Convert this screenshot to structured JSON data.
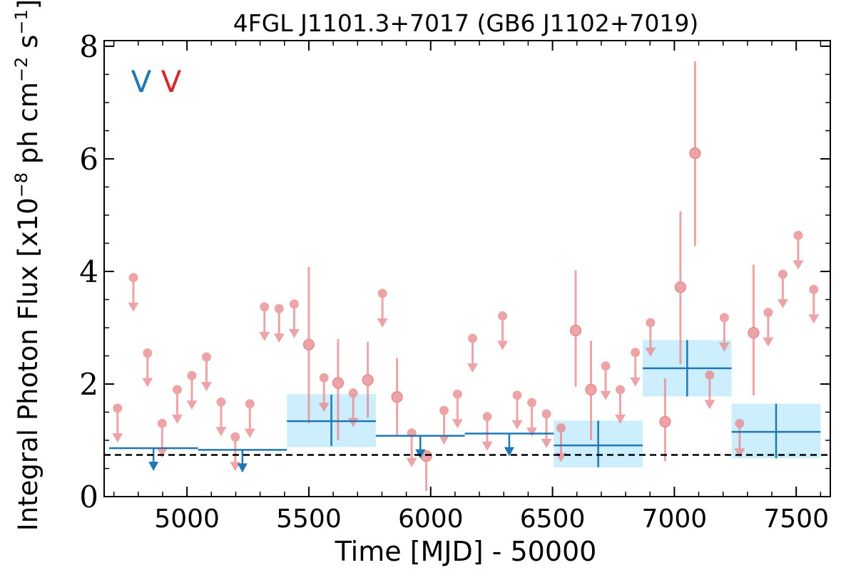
{
  "chart_data": {
    "type": "scatter",
    "title": "4FGL J1101.3+7017 (GB6 J1102+7019)",
    "xlabel": "Time [MJD] - 50000",
    "ylabel_parts": [
      "Integral Photon Flux [x10",
      "−8",
      " ph cm",
      "−2",
      " s",
      "−1",
      "]"
    ],
    "xlim": [
      4660,
      7640
    ],
    "ylim": [
      0,
      8.1
    ],
    "x_ticks": [
      5000,
      5500,
      6000,
      6500,
      7000,
      7500
    ],
    "y_ticks": [
      0,
      2,
      4,
      6,
      8
    ],
    "grid": false,
    "legend_markers": [
      {
        "text": "V",
        "color": "#1f77b4"
      },
      {
        "text": "V",
        "color": "#d62728"
      }
    ],
    "baseline": 0.74,
    "colors": {
      "long_bins": "#1f77b4",
      "long_bins_fill": "#cdeefc",
      "short_bins": "#e8868a",
      "baseline": "#000000"
    },
    "long_bins": [
      {
        "x_start": 4680,
        "x_end": 5045,
        "ul": 0.86
      },
      {
        "x_start": 5045,
        "x_end": 5410,
        "ul": 0.83
      },
      {
        "x_start": 5410,
        "x_end": 5775,
        "y": 1.34,
        "yerr_low": 0.9,
        "yerr_high": 1.81,
        "band_low": 0.88,
        "band_high": 1.82
      },
      {
        "x_start": 5775,
        "x_end": 6140,
        "ul": 1.08
      },
      {
        "x_start": 6140,
        "x_end": 6505,
        "ul": 1.12
      },
      {
        "x_start": 6505,
        "x_end": 6870,
        "y": 0.91,
        "yerr_low": 0.52,
        "yerr_high": 1.35,
        "band_low": 0.52,
        "band_high": 1.35
      },
      {
        "x_start": 6870,
        "x_end": 7235,
        "y": 2.28,
        "yerr_low": 1.78,
        "yerr_high": 2.78,
        "band_low": 1.78,
        "band_high": 2.78
      },
      {
        "x_start": 7235,
        "x_end": 7600,
        "y": 1.15,
        "yerr_low": 0.68,
        "yerr_high": 1.65,
        "band_low": 0.68,
        "band_high": 1.65
      }
    ],
    "short_bins": {
      "upper_limits": [
        {
          "x": 4715,
          "ul": 1.57
        },
        {
          "x": 4780,
          "ul": 3.89
        },
        {
          "x": 4838,
          "ul": 2.55
        },
        {
          "x": 4898,
          "ul": 1.3
        },
        {
          "x": 4960,
          "ul": 1.9
        },
        {
          "x": 5020,
          "ul": 2.15
        },
        {
          "x": 5080,
          "ul": 2.48
        },
        {
          "x": 5140,
          "ul": 1.68
        },
        {
          "x": 5198,
          "ul": 1.06
        },
        {
          "x": 5258,
          "ul": 1.65
        },
        {
          "x": 5318,
          "ul": 3.37
        },
        {
          "x": 5378,
          "ul": 3.34
        },
        {
          "x": 5440,
          "ul": 3.42
        },
        {
          "x": 5562,
          "ul": 2.11
        },
        {
          "x": 5682,
          "ul": 1.84
        },
        {
          "x": 5802,
          "ul": 3.61
        },
        {
          "x": 5922,
          "ul": 1.13
        },
        {
          "x": 6055,
          "ul": 1.53
        },
        {
          "x": 6110,
          "ul": 1.82
        },
        {
          "x": 6172,
          "ul": 2.81
        },
        {
          "x": 6232,
          "ul": 1.42
        },
        {
          "x": 6295,
          "ul": 3.21
        },
        {
          "x": 6355,
          "ul": 1.8
        },
        {
          "x": 6415,
          "ul": 1.67
        },
        {
          "x": 6475,
          "ul": 1.47
        },
        {
          "x": 6535,
          "ul": 1.22
        },
        {
          "x": 6718,
          "ul": 2.32
        },
        {
          "x": 6778,
          "ul": 1.9
        },
        {
          "x": 6840,
          "ul": 2.56
        },
        {
          "x": 6902,
          "ul": 3.09
        },
        {
          "x": 7145,
          "ul": 2.16
        },
        {
          "x": 7205,
          "ul": 3.18
        },
        {
          "x": 7268,
          "ul": 1.3
        },
        {
          "x": 7385,
          "ul": 3.27
        },
        {
          "x": 7445,
          "ul": 3.95
        },
        {
          "x": 7508,
          "ul": 4.64
        },
        {
          "x": 7572,
          "ul": 3.68
        }
      ],
      "detections": [
        {
          "x": 5500,
          "y": 2.7,
          "low": 1.3,
          "high": 4.08
        },
        {
          "x": 5620,
          "y": 2.02,
          "low": 1.0,
          "high": 2.8
        },
        {
          "x": 5742,
          "y": 2.07,
          "low": 1.4,
          "high": 2.75
        },
        {
          "x": 5862,
          "y": 1.77,
          "low": 1.1,
          "high": 2.46
        },
        {
          "x": 5982,
          "y": 0.72,
          "low": 0.1,
          "high": 0.8
        },
        {
          "x": 6595,
          "y": 2.95,
          "low": 1.95,
          "high": 4.02
        },
        {
          "x": 6658,
          "y": 1.9,
          "low": 1.0,
          "high": 2.77
        },
        {
          "x": 6962,
          "y": 1.33,
          "low": 0.63,
          "high": 2.1
        },
        {
          "x": 7025,
          "y": 3.72,
          "low": 2.35,
          "high": 5.07
        },
        {
          "x": 7085,
          "y": 6.1,
          "low": 4.45,
          "high": 7.73
        },
        {
          "x": 7325,
          "y": 2.91,
          "low": 1.8,
          "high": 4.12
        }
      ]
    }
  }
}
